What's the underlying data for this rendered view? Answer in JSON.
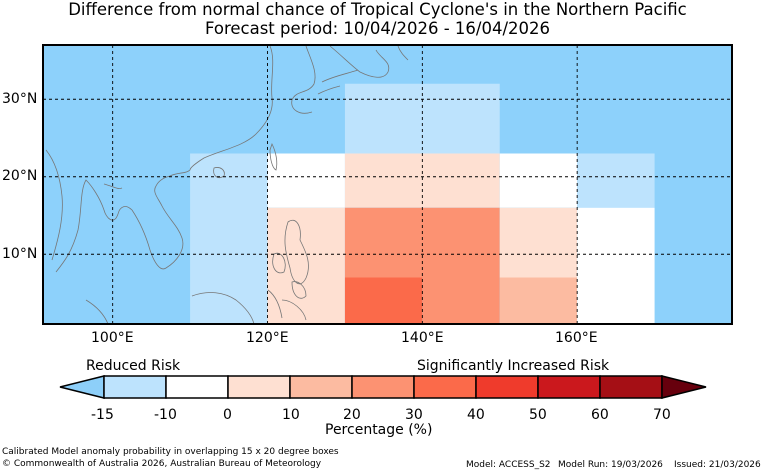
{
  "title_line1": "Difference from normal chance of Tropical Cyclone's in the Northern Pacific",
  "title_line2": "Forecast period: 10/04/2026 - 16/04/2026",
  "lat_labels": [
    "30°N",
    "20°N",
    "10°N"
  ],
  "lon_labels": [
    "100°E",
    "120°E",
    "140°E",
    "160°E"
  ],
  "colorbar": {
    "left_label": "Reduced Risk",
    "right_label": "Significantly Increased Risk",
    "ticks": [
      "-15",
      "-10",
      "0",
      "10",
      "20",
      "30",
      "40",
      "50",
      "60",
      "70"
    ],
    "colors": [
      "#bde3fd",
      "#ffffff",
      "#fee0d2",
      "#fcbba1",
      "#fc9272",
      "#fb6a4a",
      "#ef3b2c",
      "#cb181d",
      "#a50f15"
    ],
    "under_color": "#8dcff9",
    "over_color": "#67000d",
    "xlabel": "Percentage (%)"
  },
  "map": {
    "background_color": "#8dd1fb",
    "cells": [
      {
        "lon": [
          130,
          150
        ],
        "lat": [
          23,
          32
        ],
        "color": "#bde3fd"
      },
      {
        "lon": [
          110,
          120
        ],
        "lat": [
          1,
          23
        ],
        "color": "#bde3fd"
      },
      {
        "lon": [
          120,
          130
        ],
        "lat": [
          16,
          23
        ],
        "color": "#ffffff"
      },
      {
        "lon": [
          120,
          130
        ],
        "lat": [
          1,
          16
        ],
        "color": "#fee0d2"
      },
      {
        "lon": [
          130,
          150
        ],
        "lat": [
          16,
          23
        ],
        "color": "#fee0d2"
      },
      {
        "lon": [
          130,
          150
        ],
        "lat": [
          7,
          16
        ],
        "color": "#fc9272"
      },
      {
        "lon": [
          130,
          140
        ],
        "lat": [
          1,
          7
        ],
        "color": "#fb6a4a"
      },
      {
        "lon": [
          140,
          150
        ],
        "lat": [
          1,
          7
        ],
        "color": "#fc9272"
      },
      {
        "lon": [
          150,
          160
        ],
        "lat": [
          16,
          23
        ],
        "color": "#ffffff"
      },
      {
        "lon": [
          150,
          160
        ],
        "lat": [
          7,
          16
        ],
        "color": "#fee0d2"
      },
      {
        "lon": [
          150,
          160
        ],
        "lat": [
          1,
          7
        ],
        "color": "#fcbba1"
      },
      {
        "lon": [
          160,
          170
        ],
        "lat": [
          16,
          23
        ],
        "color": "#bde3fd"
      },
      {
        "lon": [
          160,
          170
        ],
        "lat": [
          1,
          16
        ],
        "color": "#ffffff"
      }
    ]
  },
  "footer": {
    "line1": "Calibrated Model anomaly probability in overlapping 15 x 20 degree boxes",
    "line2": "© Commonwealth of Australia 2026, Australian Bureau of Meteorology",
    "model": "Model: ACCESS_S2",
    "model_run": "Model Run: 19/03/2026",
    "issued": "Issued: 21/03/2026"
  }
}
